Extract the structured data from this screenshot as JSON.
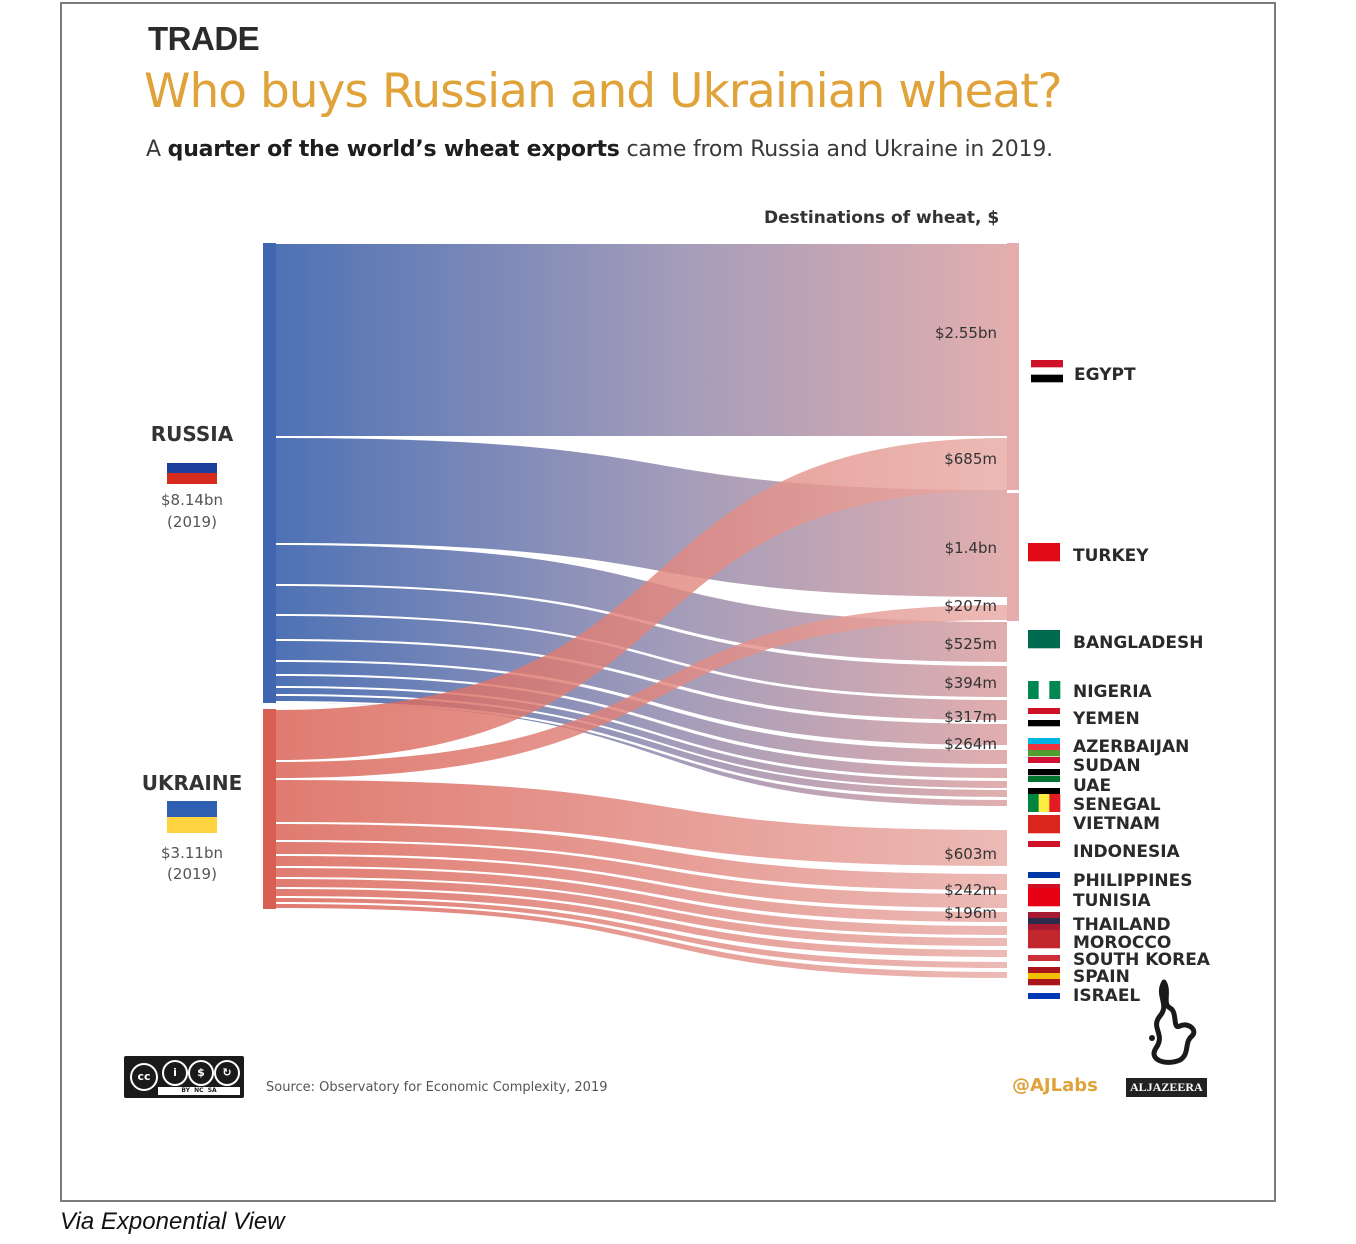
{
  "header": {
    "kicker": "TRADE",
    "title": "Who buys Russian and Ukrainian wheat?",
    "subtitle_pre": "A ",
    "subtitle_bold": "quarter of the world’s wheat exports",
    "subtitle_post": " came from Russia and Ukraine in 2019."
  },
  "destinations_heading": "Destinations of wheat, $",
  "sources": [
    {
      "name": "RUSSIA",
      "value": "$8.14bn",
      "year": "(2019)",
      "flag": [
        "#ffffff",
        "#1c3f9e",
        "#d52b1e"
      ],
      "color": "#3f66ae"
    },
    {
      "name": "UKRAINE",
      "value": "$3.11bn",
      "year": "(2019)",
      "flag": [
        "#2f5fb0",
        "#ffd23f"
      ],
      "color": "#d95f52"
    }
  ],
  "chart_data": {
    "type": "sankey",
    "title": "Destinations of wheat, $",
    "units": "$",
    "nodes_left": [
      "RUSSIA",
      "UKRAINE"
    ],
    "nodes_right": [
      "EGYPT",
      "TURKEY",
      "BANGLADESH",
      "NIGERIA",
      "YEMEN",
      "AZERBAIJAN",
      "SUDAN",
      "UAE",
      "SENEGAL",
      "VIETNAM",
      "INDONESIA",
      "PHILIPPINES",
      "TUNISIA",
      "THAILAND",
      "MOROCCO",
      "SOUTH KOREA",
      "SPAIN",
      "ISRAEL"
    ],
    "labeled_flows": [
      {
        "source": "RUSSIA",
        "target": "EGYPT",
        "label": "$2.55bn"
      },
      {
        "source": "UKRAINE",
        "target": "EGYPT",
        "label": "$685m"
      },
      {
        "source": "RUSSIA",
        "target": "TURKEY",
        "label": "$1.4bn"
      },
      {
        "source": "UKRAINE",
        "target": "TURKEY",
        "label": "$207m"
      },
      {
        "source": "RUSSIA",
        "target": "BANGLADESH",
        "label": "$525m"
      },
      {
        "source": "RUSSIA",
        "target": "NIGERIA",
        "label": "$394m"
      },
      {
        "source": "RUSSIA",
        "target": "YEMEN",
        "label": "$317m"
      },
      {
        "source": "RUSSIA",
        "target": "AZERBAIJAN",
        "label": "$264m"
      },
      {
        "source": "UKRAINE",
        "target": "INDONESIA",
        "label": "$603m"
      },
      {
        "source": "UKRAINE",
        "target": "PHILIPPINES",
        "label": "$242m"
      },
      {
        "source": "UKRAINE",
        "target": "TUNISIA",
        "label": "$196m"
      }
    ]
  },
  "footer": {
    "cc_label": "cc",
    "cc_strip": "BY  NC  SA",
    "source": "Source: Observatory for Economic Complexity, 2019",
    "handle": "@AJLabs",
    "brand": "ALJAZEERA"
  },
  "credit": "Via Exponential View"
}
